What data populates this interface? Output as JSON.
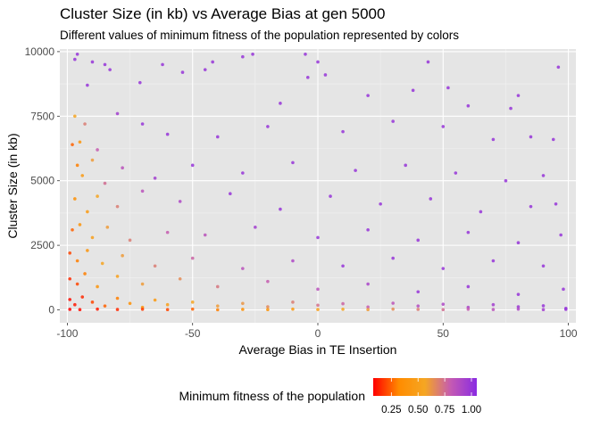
{
  "chart_data": {
    "type": "scatter",
    "title": "Cluster Size (in kb) vs Average Bias at gen 5000",
    "subtitle": "Different values of minimum fitness of the population represented by colors",
    "xlabel": "Average Bias in TE Insertion",
    "ylabel": "Cluster Size (in kb)",
    "xlim": [
      -103,
      103
    ],
    "ylim": [
      -500,
      10100
    ],
    "x_ticks": [
      -100,
      -50,
      0,
      50,
      100
    ],
    "x_tick_labels": [
      "-100",
      "-50",
      "0",
      "50",
      "100"
    ],
    "y_ticks": [
      0,
      2500,
      5000,
      7500,
      10000
    ],
    "y_tick_labels": [
      "0",
      "2500",
      "5000",
      "7500",
      "10000"
    ],
    "grid": true,
    "panel_background": "#e5e5e5",
    "legend": {
      "title": "Minimum fitness of the population",
      "position": "bottom",
      "ticks": [
        0.25,
        0.5,
        0.75,
        1.0
      ],
      "tick_labels": [
        "0.25",
        "0.50",
        "0.75",
        "1.00"
      ],
      "range": [
        0.08,
        1.05
      ],
      "colors": [
        "#ff0000",
        "#ff8c00",
        "#f5a623",
        "#c45ab3",
        "#8a2be2"
      ]
    },
    "series": [
      {
        "points": [
          [
            -97,
            9700,
            1.0
          ],
          [
            -96,
            9900,
            1.0
          ],
          [
            -90,
            9600,
            1.0
          ],
          [
            -85,
            9500,
            1.0
          ],
          [
            -83,
            9300,
            1.0
          ],
          [
            -71,
            8800,
            1.0
          ],
          [
            -62,
            9500,
            1.0
          ],
          [
            -54,
            9200,
            1.0
          ],
          [
            -45,
            9300,
            1.0
          ],
          [
            -42,
            9600,
            1.0
          ],
          [
            -30,
            9800,
            1.0
          ],
          [
            -26,
            9900,
            1.0
          ],
          [
            -5,
            9900,
            1.0
          ],
          [
            0,
            9600,
            1.0
          ],
          [
            3,
            9100,
            1.0
          ],
          [
            -4,
            9000,
            1.0
          ],
          [
            44,
            9600,
            1.0
          ],
          [
            52,
            8600,
            1.0
          ],
          [
            96,
            9400,
            1.0
          ],
          [
            80,
            8300,
            1.0
          ],
          [
            77,
            7800,
            1.0
          ],
          [
            -97,
            7500,
            0.55
          ],
          [
            -92,
            8700,
            1.0
          ],
          [
            -15,
            8000,
            1.0
          ],
          [
            20,
            8300,
            1.0
          ],
          [
            38,
            8500,
            1.0
          ],
          [
            60,
            7900,
            1.0
          ],
          [
            -98,
            6400,
            0.25
          ],
          [
            -95,
            6500,
            0.4
          ],
          [
            -93,
            7200,
            0.7
          ],
          [
            -88,
            6200,
            0.8
          ],
          [
            -80,
            7600,
            0.95
          ],
          [
            -70,
            7200,
            1.0
          ],
          [
            -60,
            6800,
            1.0
          ],
          [
            -40,
            6700,
            1.0
          ],
          [
            -20,
            7100,
            1.0
          ],
          [
            10,
            6900,
            1.0
          ],
          [
            30,
            7300,
            1.0
          ],
          [
            50,
            7100,
            1.0
          ],
          [
            70,
            6600,
            1.0
          ],
          [
            85,
            6700,
            1.0
          ],
          [
            94,
            6600,
            1.0
          ],
          [
            -96,
            5600,
            0.3
          ],
          [
            -94,
            5200,
            0.45
          ],
          [
            -90,
            5800,
            0.6
          ],
          [
            -85,
            4900,
            0.75
          ],
          [
            -78,
            5500,
            0.85
          ],
          [
            -65,
            5100,
            0.95
          ],
          [
            -50,
            5600,
            1.0
          ],
          [
            -30,
            5300,
            1.0
          ],
          [
            -10,
            5700,
            1.0
          ],
          [
            15,
            5400,
            1.0
          ],
          [
            35,
            5600,
            1.0
          ],
          [
            55,
            5300,
            1.0
          ],
          [
            75,
            5000,
            1.0
          ],
          [
            90,
            5200,
            1.0
          ],
          [
            -97,
            4300,
            0.35
          ],
          [
            -92,
            3800,
            0.45
          ],
          [
            -88,
            4400,
            0.55
          ],
          [
            -80,
            4000,
            0.7
          ],
          [
            -70,
            4600,
            0.85
          ],
          [
            -55,
            4200,
            0.9
          ],
          [
            -35,
            4500,
            1.0
          ],
          [
            -15,
            3900,
            1.0
          ],
          [
            5,
            4400,
            1.0
          ],
          [
            25,
            4100,
            1.0
          ],
          [
            45,
            4300,
            1.0
          ],
          [
            65,
            3800,
            1.0
          ],
          [
            85,
            4000,
            1.0
          ],
          [
            95,
            4100,
            1.0
          ],
          [
            -98,
            3100,
            0.25
          ],
          [
            -95,
            3300,
            0.4
          ],
          [
            -90,
            2800,
            0.5
          ],
          [
            -84,
            3200,
            0.6
          ],
          [
            -75,
            2700,
            0.7
          ],
          [
            -60,
            3000,
            0.8
          ],
          [
            -45,
            2900,
            0.85
          ],
          [
            -25,
            3200,
            0.95
          ],
          [
            0,
            2800,
            1.0
          ],
          [
            20,
            3100,
            1.0
          ],
          [
            40,
            2700,
            1.0
          ],
          [
            60,
            3000,
            1.0
          ],
          [
            80,
            2600,
            1.0
          ],
          [
            97,
            2900,
            1.0
          ],
          [
            -99,
            2200,
            0.2
          ],
          [
            -96,
            1900,
            0.3
          ],
          [
            -92,
            2300,
            0.4
          ],
          [
            -86,
            1800,
            0.55
          ],
          [
            -78,
            2100,
            0.6
          ],
          [
            -65,
            1700,
            0.7
          ],
          [
            -50,
            2000,
            0.78
          ],
          [
            -30,
            1600,
            0.85
          ],
          [
            -10,
            1900,
            0.9
          ],
          [
            10,
            1700,
            1.0
          ],
          [
            30,
            2000,
            1.0
          ],
          [
            50,
            1600,
            1.0
          ],
          [
            70,
            1900,
            1.0
          ],
          [
            90,
            1700,
            1.0
          ],
          [
            -99,
            1200,
            0.15
          ],
          [
            -96,
            1000,
            0.2
          ],
          [
            -93,
            1400,
            0.3
          ],
          [
            -88,
            900,
            0.4
          ],
          [
            -80,
            1300,
            0.5
          ],
          [
            -70,
            1000,
            0.6
          ],
          [
            -55,
            1200,
            0.65
          ],
          [
            -40,
            900,
            0.72
          ],
          [
            -20,
            1100,
            0.8
          ],
          [
            0,
            800,
            0.85
          ],
          [
            20,
            1000,
            0.92
          ],
          [
            40,
            700,
            1.0
          ],
          [
            60,
            900,
            1.0
          ],
          [
            80,
            600,
            1.0
          ],
          [
            98,
            800,
            1.0
          ],
          [
            -99,
            400,
            0.1
          ],
          [
            -97,
            200,
            0.12
          ],
          [
            -94,
            500,
            0.15
          ],
          [
            -90,
            300,
            0.2
          ],
          [
            -85,
            150,
            0.25
          ],
          [
            -80,
            450,
            0.3
          ],
          [
            -75,
            250,
            0.35
          ],
          [
            -70,
            100,
            0.4
          ],
          [
            -65,
            380,
            0.45
          ],
          [
            -60,
            200,
            0.5
          ],
          [
            -50,
            300,
            0.55
          ],
          [
            -40,
            150,
            0.6
          ],
          [
            -30,
            250,
            0.62
          ],
          [
            -20,
            120,
            0.66
          ],
          [
            -10,
            300,
            0.7
          ],
          [
            0,
            180,
            0.74
          ],
          [
            10,
            240,
            0.78
          ],
          [
            20,
            110,
            0.8
          ],
          [
            30,
            260,
            0.84
          ],
          [
            40,
            150,
            0.88
          ],
          [
            50,
            220,
            0.9
          ],
          [
            60,
            100,
            0.92
          ],
          [
            70,
            200,
            0.95
          ],
          [
            80,
            120,
            0.98
          ],
          [
            90,
            160,
            1.0
          ],
          [
            99,
            60,
            1.0
          ],
          [
            -99,
            20,
            0.08
          ],
          [
            -95,
            10,
            0.1
          ],
          [
            -88,
            30,
            0.12
          ],
          [
            -80,
            15,
            0.15
          ],
          [
            -70,
            25,
            0.18
          ],
          [
            -60,
            10,
            0.2
          ],
          [
            -50,
            30,
            0.25
          ],
          [
            -40,
            5,
            0.3
          ],
          [
            -30,
            20,
            0.35
          ],
          [
            -20,
            10,
            0.4
          ],
          [
            -10,
            30,
            0.45
          ],
          [
            0,
            15,
            0.5
          ],
          [
            10,
            25,
            0.55
          ],
          [
            20,
            10,
            0.6
          ],
          [
            30,
            30,
            0.65
          ],
          [
            40,
            20,
            0.7
          ],
          [
            50,
            10,
            0.75
          ],
          [
            60,
            25,
            0.8
          ],
          [
            70,
            15,
            0.85
          ],
          [
            80,
            30,
            0.9
          ],
          [
            90,
            10,
            0.95
          ],
          [
            99,
            20,
            1.0
          ]
        ]
      }
    ]
  }
}
